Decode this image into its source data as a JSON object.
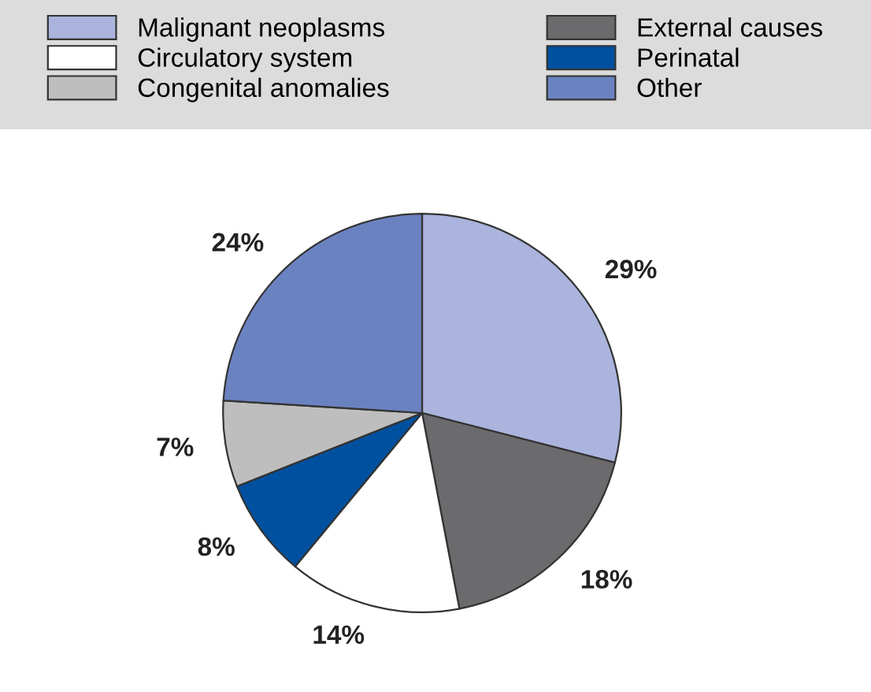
{
  "chart_data": {
    "type": "pie",
    "categories": [
      "Malignant neoplasms",
      "External causes",
      "Circulatory system",
      "Perinatal",
      "Congenital anomalies",
      "Other"
    ],
    "values": [
      29,
      18,
      14,
      8,
      7,
      24
    ],
    "value_labels": [
      "29%",
      "18%",
      "14%",
      "8%",
      "7%",
      "24%"
    ],
    "colors": [
      "#aab4dc",
      "#6b6b6e",
      "#ffffff",
      "#0050a0",
      "#bebebe",
      "#6a82c0"
    ],
    "legend": "top"
  }
}
